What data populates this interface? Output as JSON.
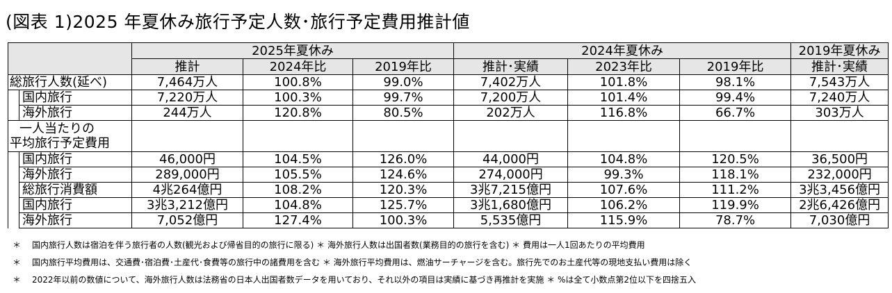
{
  "title": "(図表 1)2025 年夏休み旅行予定人数･旅行予定費用推計値",
  "header": {
    "groups": [
      "2025年夏休み",
      "2024年夏休み",
      "2019年夏休み"
    ],
    "cols": [
      "推計",
      "2024年比",
      "2019年比",
      "推計･実績",
      "2023年比",
      "2019年比",
      "推計･実績"
    ]
  },
  "rows": [
    {
      "label": "総旅行人数(延べ)",
      "values": [
        "7,464万人",
        "100.8%",
        "99.0%",
        "7,402万人",
        "101.8%",
        "98.1%",
        "7,543万人"
      ]
    },
    {
      "label": "国内旅行",
      "values": [
        "7,220万人",
        "100.3%",
        "99.7%",
        "7,200万人",
        "101.4%",
        "99.4%",
        "7,240万人"
      ]
    },
    {
      "label": "海外旅行",
      "values": [
        "244万人",
        "120.8%",
        "80.5%",
        "202万人",
        "116.8%",
        "66.7%",
        "303万人"
      ]
    },
    {
      "label_line1": "一人当たりの",
      "label_line2": "平均旅行予定費用"
    },
    {
      "label": "国内旅行",
      "values": [
        "46,000円",
        "104.5%",
        "126.0%",
        "44,000円",
        "104.8%",
        "120.5%",
        "36,500円"
      ]
    },
    {
      "label": "海外旅行",
      "values": [
        "289,000円",
        "105.5%",
        "124.6%",
        "274,000円",
        "99.3%",
        "118.1%",
        "232,000円"
      ]
    },
    {
      "label": "総旅行消費額",
      "values": [
        "4兆264億円",
        "108.2%",
        "120.3%",
        "3兆7,215億円",
        "107.6%",
        "111.2%",
        "3兆3,456億円"
      ]
    },
    {
      "label": "国内旅行",
      "values": [
        "3兆3,212億円",
        "104.8%",
        "125.7%",
        "3兆1,680億円",
        "106.2%",
        "119.9%",
        "2兆6,426億円"
      ]
    },
    {
      "label": "海外旅行",
      "values": [
        "7,052億円",
        "127.4%",
        "100.3%",
        "5,535億円",
        "115.9%",
        "78.7%",
        "7,030億円"
      ]
    }
  ],
  "notes": [
    {
      "mark": "＊",
      "text": "国内旅行人数は宿泊を伴う旅行者の人数(観光および帰省目的の旅行に限る) ＊ 海外旅行人数は出国者数(業務目的の旅行を含む) ＊ 費用は一人1回あたりの平均費用"
    },
    {
      "mark": "＊",
      "text": "国内旅行平均費用は、交通費･宿泊費･土産代･食費等の旅行中の諸費用を含む ＊ 海外旅行平均費用は、燃油サーチャージを含む。旅行先でのお土産代等の現地支払い費用は除く"
    },
    {
      "mark": "＊",
      "text": "2022年以前の数値について、海外旅行人数は法務省の日本人出国者数データを用いており、それ以外の項目は実績に基づき再推計を実施 ＊ %は全て小数点第2位以下を四捨五入"
    }
  ]
}
